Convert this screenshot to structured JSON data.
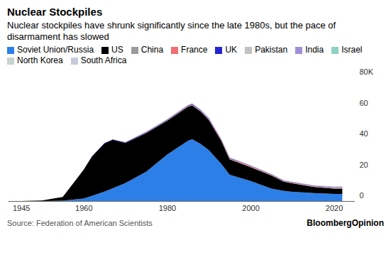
{
  "chart_data": {
    "type": "area",
    "stacked": true,
    "title": "Nuclear Stockpiles",
    "subtitle": "Nuclear stockpiles have shrunk significantly since the late 1980s, but the pace of disarmament has slowed",
    "source": "Source: Federation of American Scientists",
    "credit": "BloombergOpinion",
    "legend": "top",
    "grid": false,
    "x": [
      1945,
      1950,
      1955,
      1960,
      1962,
      1965,
      1967,
      1970,
      1975,
      1980,
      1985,
      1986,
      1988,
      1990,
      1993,
      1995,
      2000,
      2005,
      2008,
      2010,
      2015,
      2020,
      2022
    ],
    "xlim": [
      1942,
      2025
    ],
    "xticks": [
      1945,
      1960,
      1980,
      2000,
      2020
    ],
    "ylim": [
      0,
      80
    ],
    "yticks": [
      0,
      20,
      40,
      60,
      {
        "value": 80,
        "label": "80K"
      }
    ],
    "series": [
      {
        "name": "Soviet Union/Russia",
        "color": "#2d7fe8",
        "values": [
          0,
          0.005,
          0.2,
          1.6,
          3.3,
          6.1,
          8.3,
          11.6,
          19,
          30,
          39,
          40,
          37,
          33,
          24,
          17,
          13,
          8,
          6.5,
          6,
          5.2,
          4.6,
          4.5
        ]
      },
      {
        "name": "US",
        "color": "#000000",
        "values": [
          0.002,
          0.3,
          2.4,
          18.6,
          25.5,
          31.1,
          31.3,
          26,
          25,
          22,
          22,
          22,
          21,
          19.5,
          15,
          10,
          9,
          8.5,
          6,
          5.5,
          4,
          3.5,
          3.6
        ]
      },
      {
        "name": "China",
        "color": "#9b9b9b",
        "values": [
          0,
          0,
          0,
          0,
          0,
          0.005,
          0.025,
          0.075,
          0.185,
          0.205,
          0.222,
          0.224,
          0.232,
          0.232,
          0.234,
          0.234,
          0.232,
          0.235,
          0.24,
          0.24,
          0.26,
          0.35,
          0.41
        ]
      },
      {
        "name": "France",
        "color": "#ef6f72",
        "values": [
          0,
          0,
          0,
          0,
          0,
          0.032,
          0.036,
          0.036,
          0.188,
          0.25,
          0.36,
          0.355,
          0.41,
          0.505,
          0.5,
          0.5,
          0.47,
          0.35,
          0.3,
          0.3,
          0.3,
          0.29,
          0.29
        ]
      },
      {
        "name": "UK",
        "color": "#2424d4",
        "values": [
          0,
          0,
          0.014,
          0.03,
          0.205,
          0.31,
          0.27,
          0.28,
          0.35,
          0.35,
          0.422,
          0.422,
          0.422,
          0.422,
          0.3,
          0.3,
          0.28,
          0.28,
          0.225,
          0.225,
          0.215,
          0.225,
          0.225
        ]
      },
      {
        "name": "Pakistan",
        "color": "#c2c2c2",
        "values": [
          0,
          0,
          0,
          0,
          0,
          0,
          0,
          0,
          0,
          0,
          0,
          0,
          0,
          0,
          0,
          0.005,
          0.02,
          0.04,
          0.07,
          0.08,
          0.12,
          0.16,
          0.165
        ]
      },
      {
        "name": "India",
        "color": "#a08fd8",
        "values": [
          0,
          0,
          0,
          0,
          0,
          0,
          0,
          0,
          0,
          0,
          0,
          0,
          0,
          0.008,
          0.01,
          0.01,
          0.025,
          0.05,
          0.06,
          0.07,
          0.1,
          0.15,
          0.16
        ]
      },
      {
        "name": "Israel",
        "color": "#8fd0c4",
        "values": [
          0,
          0,
          0,
          0,
          0,
          0,
          0.002,
          0.008,
          0.02,
          0.04,
          0.06,
          0.06,
          0.06,
          0.06,
          0.07,
          0.07,
          0.08,
          0.08,
          0.08,
          0.08,
          0.08,
          0.09,
          0.09
        ]
      },
      {
        "name": "North Korea",
        "color": "#c6d4d0",
        "values": [
          0,
          0,
          0,
          0,
          0,
          0,
          0,
          0,
          0,
          0,
          0,
          0,
          0,
          0,
          0,
          0,
          0,
          0,
          0.004,
          0.008,
          0.01,
          0.035,
          0.03
        ]
      },
      {
        "name": "South Africa",
        "color": "#c8cadb",
        "values": [
          0,
          0,
          0,
          0,
          0,
          0,
          0,
          0,
          0,
          0.001,
          0.005,
          0.005,
          0.006,
          0.006,
          0,
          0,
          0,
          0,
          0,
          0,
          0,
          0,
          0
        ]
      }
    ]
  }
}
